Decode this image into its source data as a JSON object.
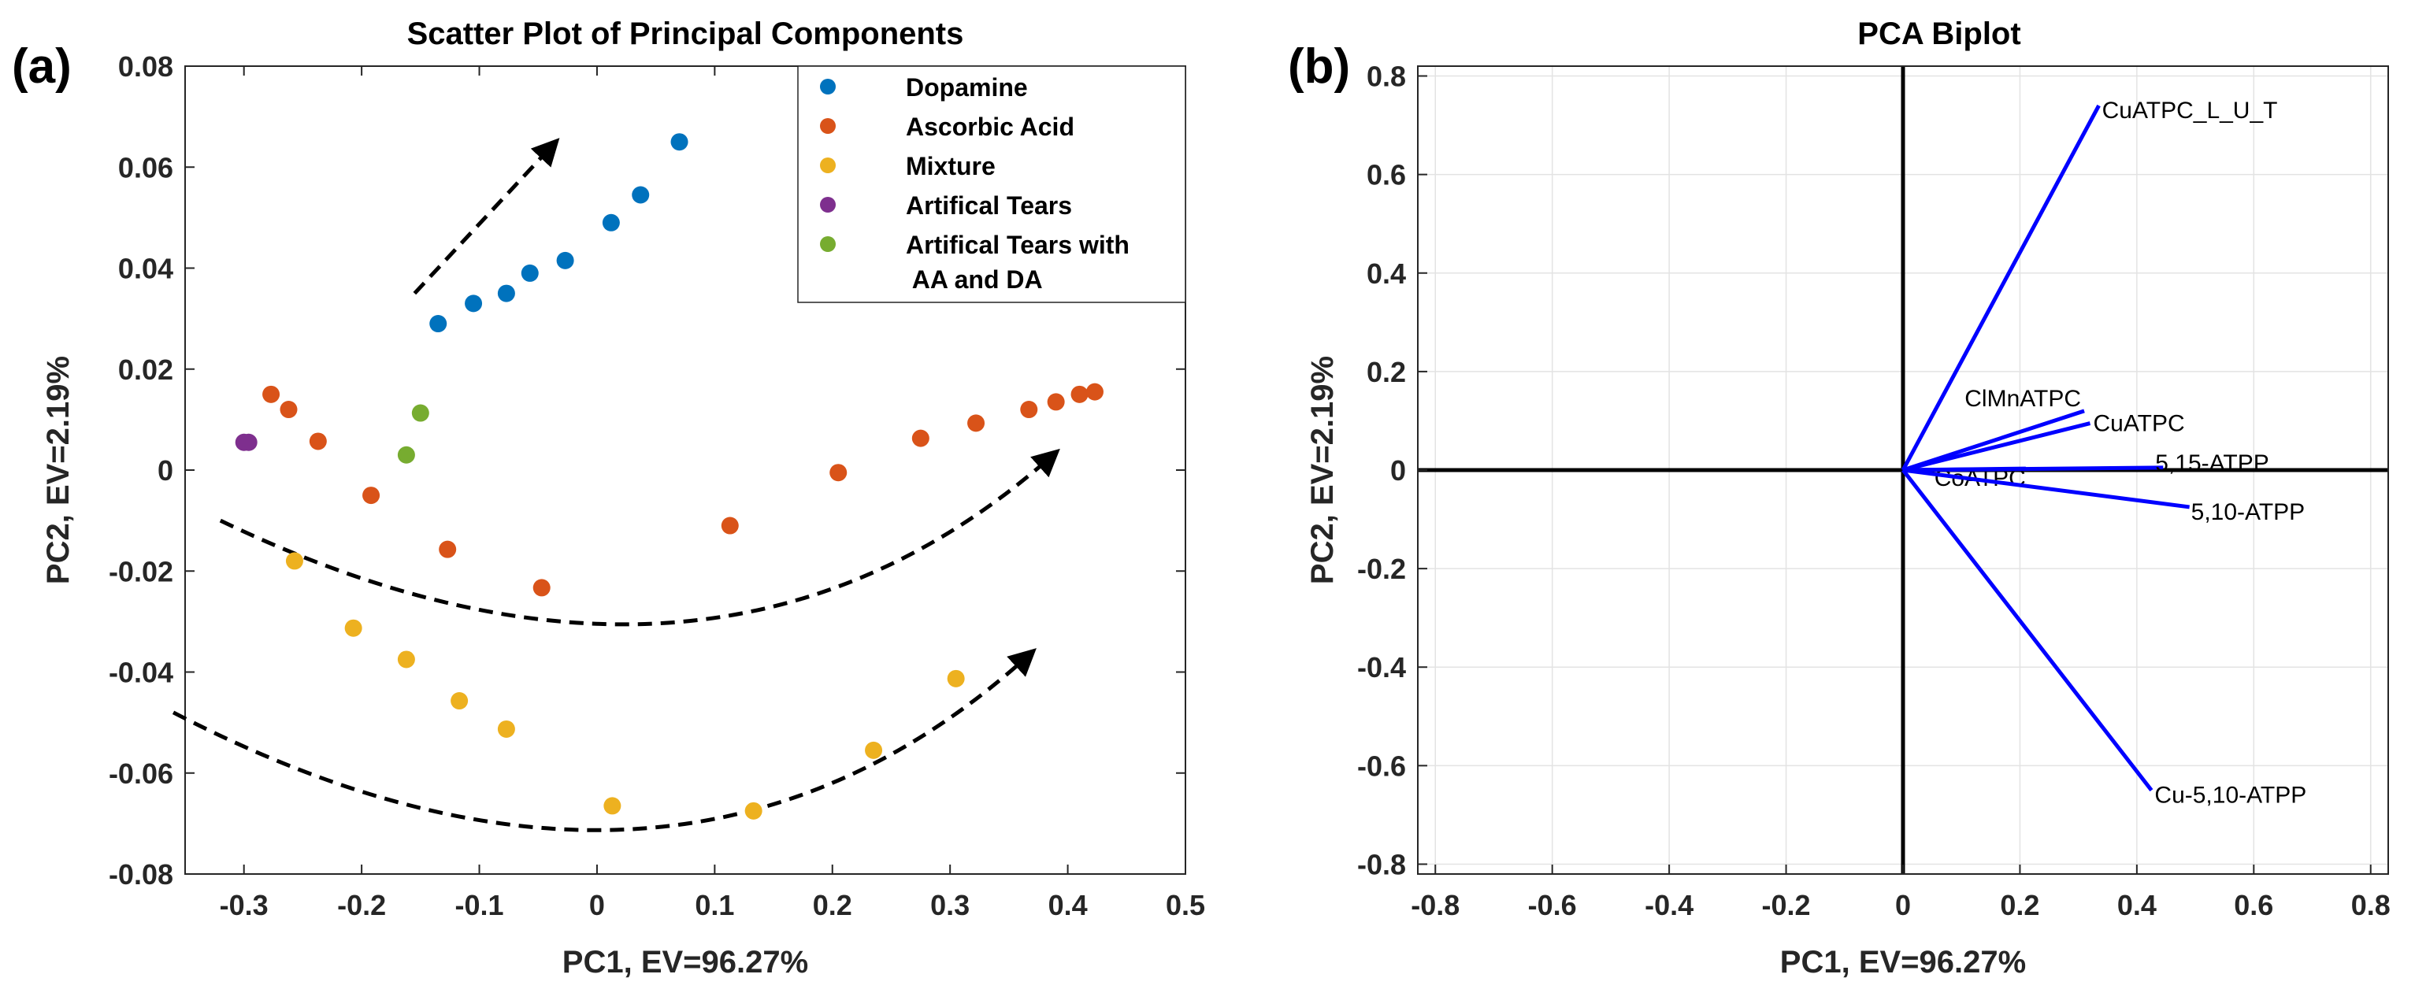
{
  "panel_labels": [
    "(a)",
    "(b)"
  ],
  "chart_data": [
    {
      "type": "scatter",
      "title": "Scatter Plot of Principal Components",
      "xlabel": "PC1, EV=96.27%",
      "ylabel": "PC2, EV=2.19%",
      "xlim": [
        -0.35,
        0.5
      ],
      "ylim": [
        -0.08,
        0.08
      ],
      "xticks": [
        -0.3,
        -0.2,
        -0.1,
        0,
        0.1,
        0.2,
        0.3,
        0.4,
        0.5
      ],
      "xtick_labels": [
        "-0.3",
        "-0.2",
        "-0.1",
        "0",
        "0.1",
        "0.2",
        "0.3",
        "0.4",
        "0.5"
      ],
      "yticks": [
        -0.08,
        -0.06,
        -0.04,
        -0.02,
        0,
        0.02,
        0.04,
        0.06,
        0.08
      ],
      "ytick_labels": [
        "-0.08",
        "-0.06",
        "-0.04",
        "-0.02",
        "0",
        "0.02",
        "0.04",
        "0.06",
        "0.08"
      ],
      "grid": false,
      "legend_position": "top-right",
      "series": [
        {
          "name": "Dopamine",
          "color": "#0072BD",
          "points": [
            [
              -0.135,
              0.029
            ],
            [
              -0.105,
              0.033
            ],
            [
              -0.077,
              0.035
            ],
            [
              -0.057,
              0.039
            ],
            [
              -0.027,
              0.0415
            ],
            [
              0.012,
              0.049
            ],
            [
              0.037,
              0.0545
            ],
            [
              0.07,
              0.065
            ]
          ]
        },
        {
          "name": "Ascorbic Acid",
          "color": "#D95319",
          "points": [
            [
              -0.277,
              0.015
            ],
            [
              -0.262,
              0.012
            ],
            [
              -0.237,
              0.0057
            ],
            [
              -0.192,
              -0.005
            ],
            [
              -0.127,
              -0.0157
            ],
            [
              -0.047,
              -0.0233
            ],
            [
              0.113,
              -0.011
            ],
            [
              0.205,
              -0.0005
            ],
            [
              0.275,
              0.0063
            ],
            [
              0.322,
              0.0093
            ],
            [
              0.367,
              0.012
            ],
            [
              0.39,
              0.0135
            ],
            [
              0.41,
              0.015
            ],
            [
              0.423,
              0.0155
            ]
          ]
        },
        {
          "name": "Mixture",
          "color": "#EDB120",
          "points": [
            [
              -0.257,
              -0.018
            ],
            [
              -0.207,
              -0.0313
            ],
            [
              -0.162,
              -0.0375
            ],
            [
              -0.117,
              -0.0457
            ],
            [
              -0.077,
              -0.0513
            ],
            [
              0.013,
              -0.0665
            ],
            [
              0.133,
              -0.0675
            ],
            [
              0.235,
              -0.0555
            ],
            [
              0.305,
              -0.0413
            ]
          ]
        },
        {
          "name": "Artifical Tears",
          "color": "#7E2F8E",
          "points": [
            [
              -0.3,
              0.0055
            ],
            [
              -0.296,
              0.0055
            ]
          ]
        },
        {
          "name": "Artifical Tears with\n AA and DA",
          "color": "#77AC30",
          "points": [
            [
              -0.162,
              0.003
            ],
            [
              -0.15,
              0.0113
            ]
          ]
        }
      ],
      "annotations": [
        {
          "kind": "straight-dashed-arrow",
          "from": [
            -0.155,
            0.035
          ],
          "to": [
            -0.035,
            0.065
          ]
        },
        {
          "kind": "curved-dashed-arrow",
          "from": [
            -0.32,
            -0.01
          ],
          "ctrl": [
            0.1,
            -0.057
          ],
          "to": [
            0.39,
            0.0035
          ]
        },
        {
          "kind": "curved-dashed-arrow",
          "from": [
            -0.36,
            -0.048
          ],
          "ctrl": [
            0.07,
            -0.1
          ],
          "to": [
            0.37,
            -0.036
          ]
        }
      ]
    },
    {
      "type": "biplot",
      "title": "PCA Biplot",
      "xlabel": "PC1, EV=96.27%",
      "ylabel": "PC2, EV=2.19%",
      "xlim": [
        -0.83,
        0.83
      ],
      "ylim": [
        -0.82,
        0.82
      ],
      "xticks": [
        -0.8,
        -0.6,
        -0.4,
        -0.2,
        0,
        0.2,
        0.4,
        0.6,
        0.8
      ],
      "xtick_labels": [
        "-0.8",
        "-0.6",
        "-0.4",
        "-0.2",
        "0",
        "0.2",
        "0.4",
        "0.6",
        "0.8"
      ],
      "yticks": [
        -0.8,
        -0.6,
        -0.4,
        -0.2,
        0,
        0.2,
        0.4,
        0.6,
        0.8
      ],
      "ytick_labels": [
        "-0.8",
        "-0.6",
        "-0.4",
        "-0.2",
        "0",
        "0.2",
        "0.4",
        "0.6",
        "0.8"
      ],
      "grid": true,
      "vector_color": "#0000FF",
      "vectors": [
        {
          "label": "CuATPC_L_U_T",
          "x": 0.335,
          "y": 0.74
        },
        {
          "label": "ClMnATPC",
          "x": 0.31,
          "y": 0.12
        },
        {
          "label": "CuATPC",
          "x": 0.32,
          "y": 0.095
        },
        {
          "label": "CoATPC",
          "x": 0.21,
          "y": 0.003
        },
        {
          "label": "5,15-ATPP",
          "x": 0.445,
          "y": 0.005
        },
        {
          "label": "5,10-ATPP",
          "x": 0.49,
          "y": -0.075
        },
        {
          "label": "Cu-5,10-ATPP",
          "x": 0.425,
          "y": -0.65
        }
      ]
    }
  ]
}
